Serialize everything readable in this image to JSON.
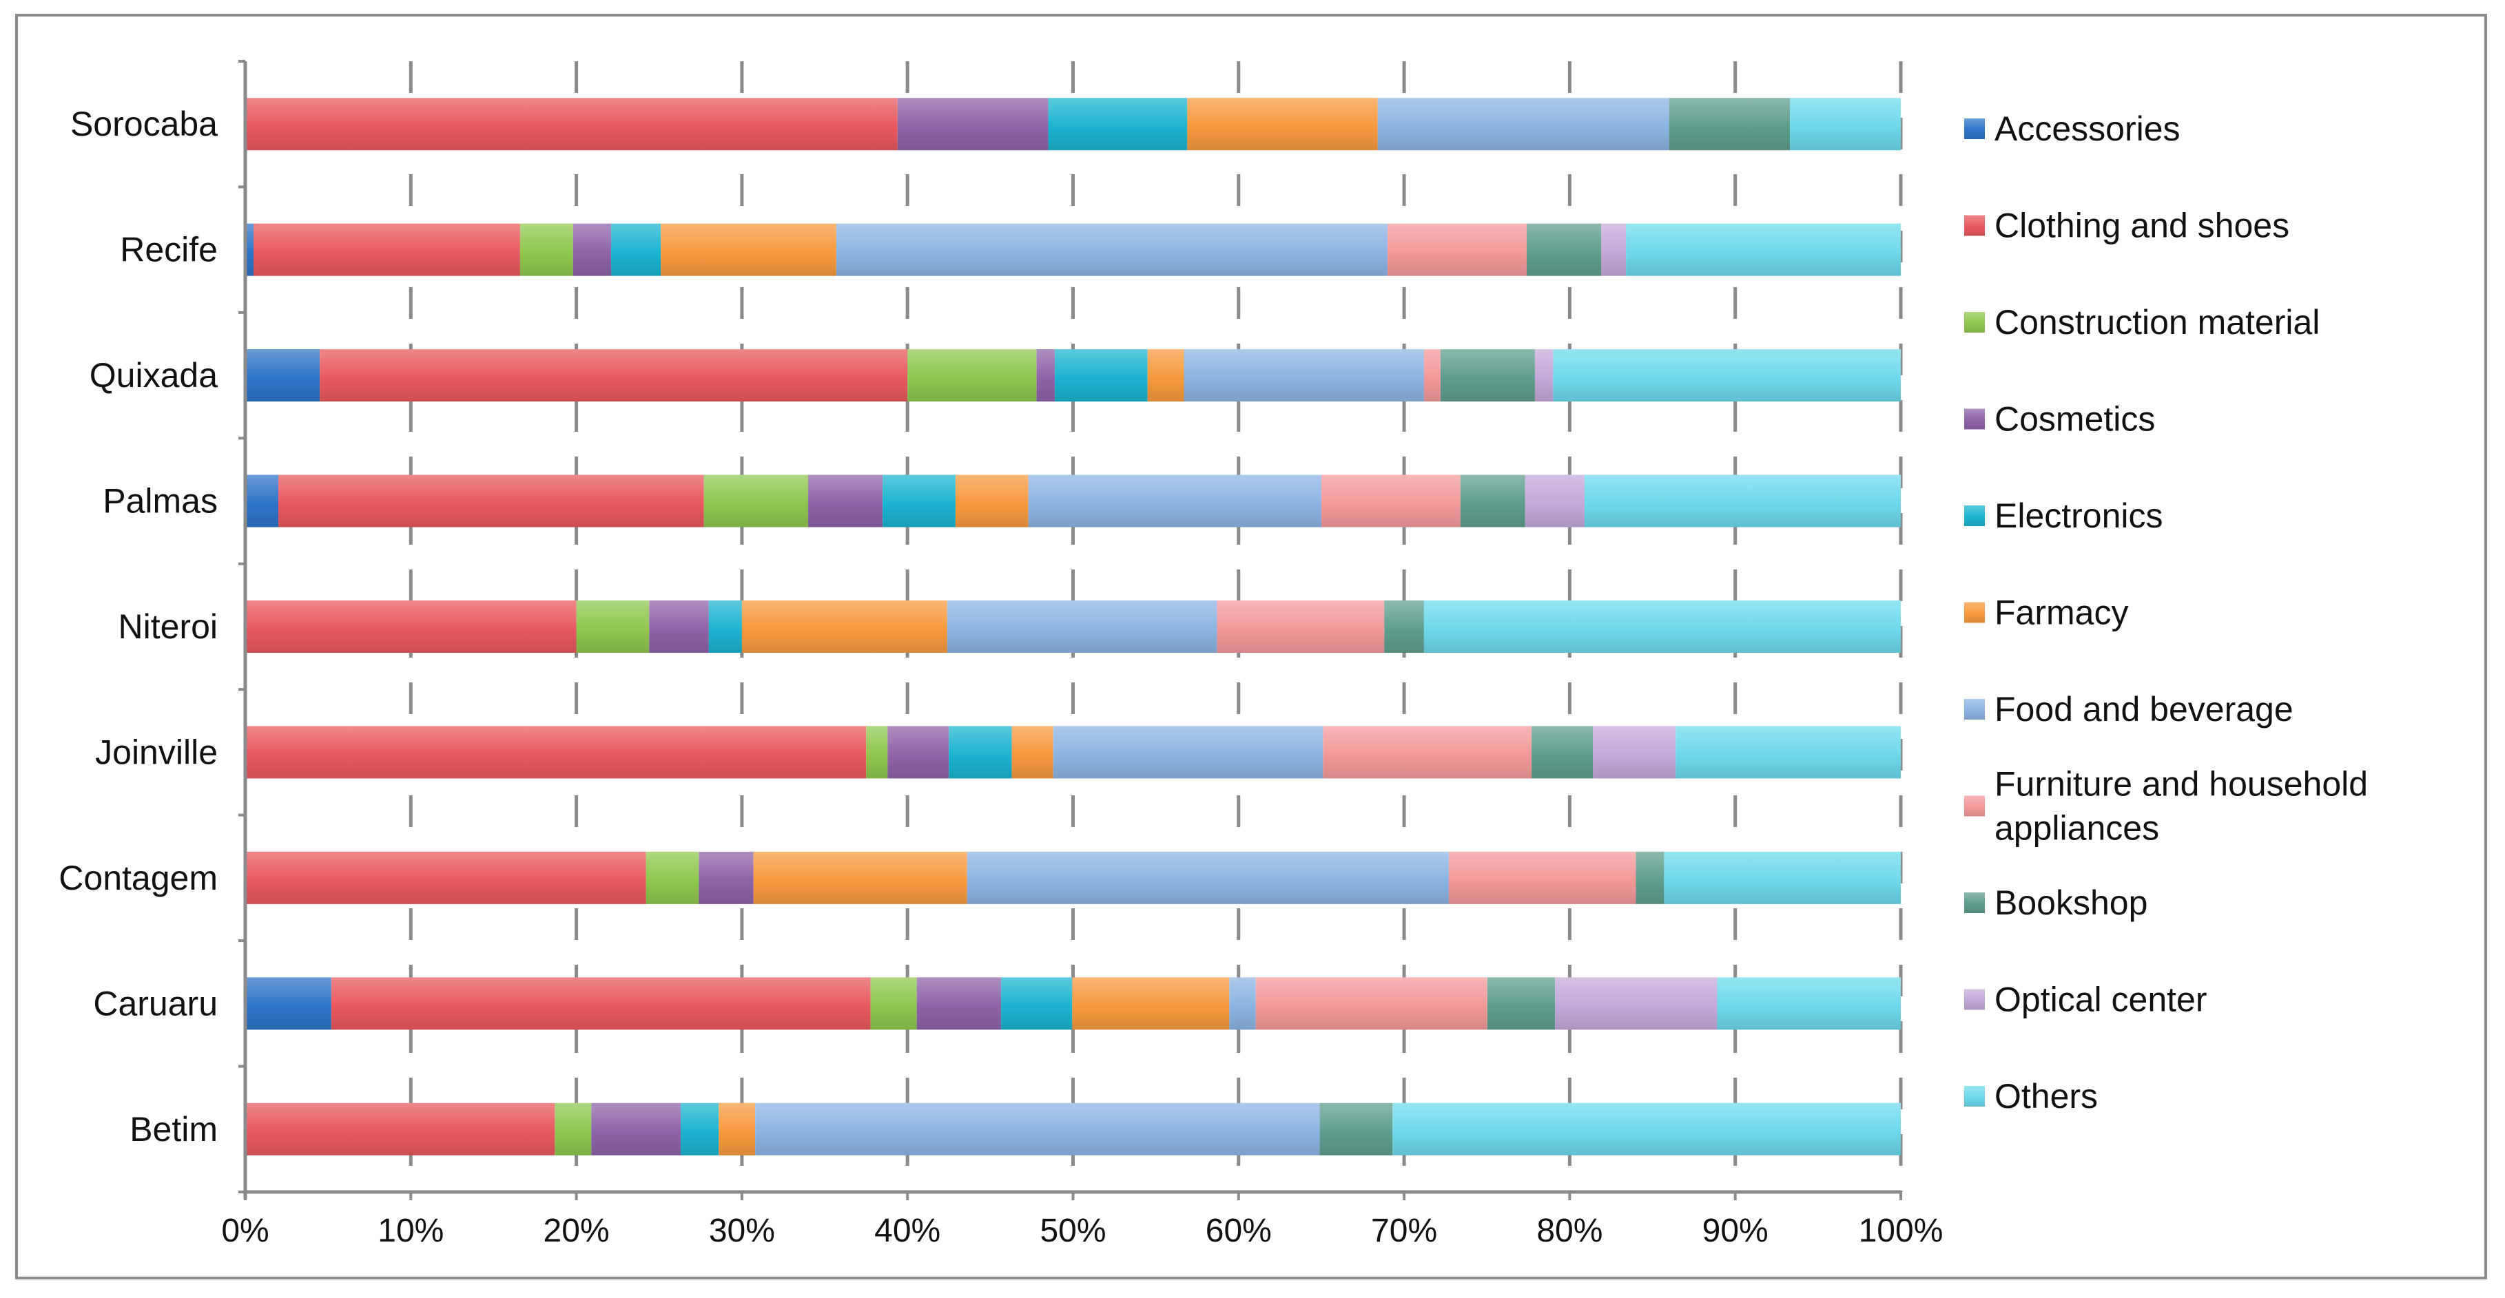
{
  "chart_data": {
    "type": "bar",
    "orientation": "horizontal",
    "stacked": "percent",
    "categories": [
      "Sorocaba",
      "Recife",
      "Quixada",
      "Palmas",
      "Niteroi",
      "Joinville",
      "Contagem",
      "Caruaru",
      "Betim"
    ],
    "xticks": [
      "0%",
      "10%",
      "20%",
      "30%",
      "40%",
      "50%",
      "60%",
      "70%",
      "80%",
      "90%",
      "100%"
    ],
    "xlim": [
      0,
      100
    ],
    "grid": "vertical dashed",
    "legend_position": "right",
    "series": [
      {
        "name": "Accessories",
        "color": "#2e75c8",
        "values": [
          0,
          0.5,
          4.5,
          2,
          0,
          0,
          0,
          5.2,
          0
        ]
      },
      {
        "name": "Clothing and shoes",
        "color": "#e8595e",
        "values": [
          39.4,
          16.1,
          35.5,
          25.7,
          20,
          37.5,
          24.2,
          32.6,
          18.7
        ]
      },
      {
        "name": "Construction material",
        "color": "#8fc74e",
        "values": [
          0,
          3.2,
          7.8,
          6.3,
          4.4,
          1.3,
          3.2,
          2.8,
          2.2
        ]
      },
      {
        "name": "Cosmetics",
        "color": "#8e63a8",
        "values": [
          9.1,
          2.3,
          1.1,
          4.5,
          3.6,
          3.7,
          3.3,
          5.1,
          5.4
        ]
      },
      {
        "name": "Electronics",
        "color": "#1cb4d0",
        "values": [
          8.4,
          3,
          5.6,
          4.4,
          2,
          3.8,
          0,
          4.3,
          2.3
        ]
      },
      {
        "name": "Farmacy",
        "color": "#f79a3e",
        "values": [
          11.5,
          10.6,
          2.2,
          4.4,
          12.4,
          2.5,
          12.9,
          9.5,
          2.2
        ]
      },
      {
        "name": "Food and beverage",
        "color": "#8db4e3",
        "values": [
          17.6,
          33.3,
          14.5,
          17.7,
          16.3,
          16.3,
          29.1,
          1.6,
          34.1
        ]
      },
      {
        "name": "Furniture and household appliances",
        "color": "#f3999a",
        "values": [
          0,
          8.4,
          1,
          8.4,
          10.1,
          12.6,
          11.3,
          14,
          0
        ]
      },
      {
        "name": "Bookshop",
        "color": "#5f9e8e",
        "values": [
          7.3,
          4.5,
          5.7,
          3.9,
          2.4,
          3.7,
          1.7,
          4.1,
          4.4
        ]
      },
      {
        "name": "Optical center",
        "color": "#c3a9d9",
        "values": [
          0,
          1.5,
          1.1,
          3.6,
          0,
          5,
          0,
          9.8,
          0
        ]
      },
      {
        "name": "Others",
        "color": "#6dd9ec",
        "values": [
          6.7,
          16.6,
          21,
          19.1,
          28.8,
          13.6,
          14.3,
          11.1,
          30.7
        ]
      }
    ]
  }
}
